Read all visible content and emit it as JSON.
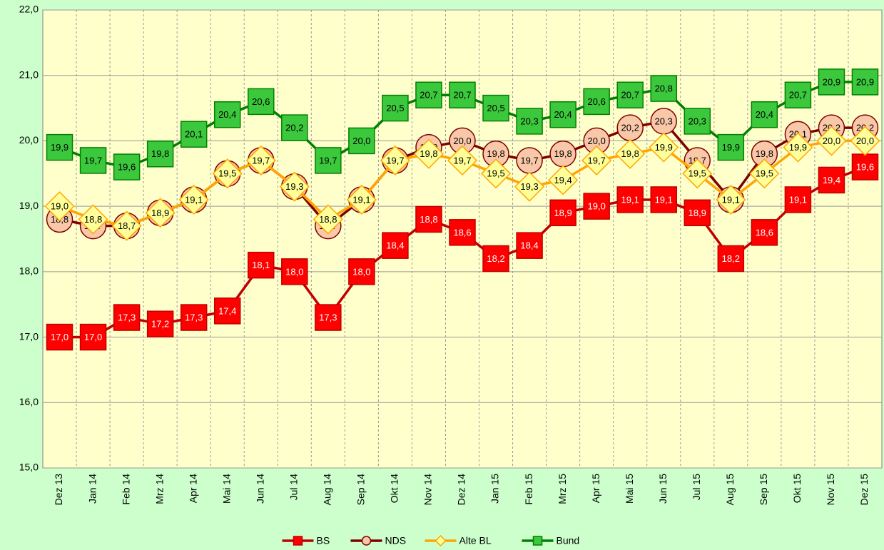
{
  "chart_data": {
    "type": "line",
    "categories": [
      "Dez 13",
      "Jan 14",
      "Feb 14",
      "Mrz 14",
      "Apr 14",
      "Mai 14",
      "Jun 14",
      "Jul 14",
      "Aug 14",
      "Sep 14",
      "Okt 14",
      "Nov 14",
      "Dez 14",
      "Jan 15",
      "Feb 15",
      "Mrz 15",
      "Apr 15",
      "Mai 15",
      "Jun 15",
      "Jul 15",
      "Aug 15",
      "Sep 15",
      "Okt 15",
      "Nov 15",
      "Dez 15"
    ],
    "series": [
      {
        "name": "BS",
        "color": "#c00000",
        "marker": "square",
        "marker_color": "#ff0000",
        "label_color": "#ffffff",
        "values": [
          17.0,
          17.0,
          17.3,
          17.2,
          17.3,
          17.4,
          18.1,
          18.0,
          17.3,
          18.0,
          18.4,
          18.8,
          18.6,
          18.2,
          18.4,
          18.9,
          19.0,
          19.1,
          19.1,
          18.9,
          18.2,
          18.6,
          19.1,
          19.4,
          19.6
        ],
        "value_labels": [
          "17,0",
          "17,0",
          "17,3",
          "17,2",
          "17,3",
          "17,4",
          "18,1",
          "18,0",
          "17,3",
          "18,0",
          "18,4",
          "18,8",
          "18,6",
          "18,2",
          "18,4",
          "18,9",
          "19,0",
          "19,1",
          "19,1",
          "18,9",
          "18,2",
          "18,6",
          "19,1",
          "19,4",
          "19,6"
        ]
      },
      {
        "name": "NDS",
        "color": "#800000",
        "marker": "circle",
        "marker_color": "#f8c8a8",
        "label_color": "#000000",
        "values": [
          18.8,
          18.7,
          18.7,
          18.9,
          19.1,
          19.5,
          19.7,
          19.3,
          18.7,
          19.1,
          19.7,
          19.9,
          20.0,
          19.8,
          19.7,
          19.8,
          20.0,
          20.2,
          20.3,
          19.7,
          19.1,
          19.8,
          20.1,
          20.2,
          20.2
        ],
        "value_labels": [
          "18,8",
          "18,7",
          "18,7",
          "18,9",
          "19,1",
          "19,5",
          "19,7",
          "19,3",
          "18,7",
          "19,1",
          "19,7",
          "19,9",
          "20,0",
          "19,8",
          "19,7",
          "19,8",
          "20,0",
          "20,2",
          "20,3",
          "19,7",
          "19,1",
          "19,8",
          "20,1",
          "20,2",
          "20,2"
        ]
      },
      {
        "name": "Alte BL",
        "color": "#ffa500",
        "marker": "diamond",
        "marker_color": "#ffff99",
        "label_color": "#000000",
        "values": [
          19.0,
          18.8,
          18.7,
          18.9,
          19.1,
          19.5,
          19.7,
          19.3,
          18.8,
          19.1,
          19.7,
          19.8,
          19.7,
          19.5,
          19.3,
          19.4,
          19.7,
          19.8,
          19.9,
          19.5,
          19.1,
          19.5,
          19.9,
          20.0,
          20.0
        ],
        "value_labels": [
          "19,0",
          "18,8",
          "18,7",
          "18,9",
          "19,1",
          "19,5",
          "19,7",
          "19,3",
          "18,8",
          "19,1",
          "19,7",
          "19,8",
          "19,7",
          "19,5",
          "19,3",
          "19,4",
          "19,7",
          "19,8",
          "19,9",
          "19,5",
          "19,1",
          "19,5",
          "19,9",
          "20,0",
          "20,0"
        ]
      },
      {
        "name": "Bund",
        "color": "#008000",
        "marker": "square",
        "marker_color": "#3cc83c",
        "label_color": "#000000",
        "values": [
          19.9,
          19.7,
          19.6,
          19.8,
          20.1,
          20.4,
          20.6,
          20.2,
          19.7,
          20.0,
          20.5,
          20.7,
          20.7,
          20.5,
          20.3,
          20.4,
          20.6,
          20.7,
          20.8,
          20.3,
          19.9,
          20.4,
          20.7,
          20.9,
          20.9
        ],
        "value_labels": [
          "19,9",
          "19,7",
          "19,6",
          "19,8",
          "20,1",
          "20,4",
          "20,6",
          "20,2",
          "19,7",
          "20,0",
          "20,5",
          "20,7",
          "20,7",
          "20,5",
          "20,3",
          "20,4",
          "20,6",
          "20,7",
          "20,8",
          "20,3",
          "19,9",
          "20,4",
          "20,7",
          "20,9",
          "20,9"
        ]
      }
    ],
    "ylim": [
      15,
      22
    ],
    "yticks": [
      {
        "value": 15,
        "label": "15,0"
      },
      {
        "value": 16,
        "label": "16,0"
      },
      {
        "value": 17,
        "label": "17,0"
      },
      {
        "value": 18,
        "label": "18,0"
      },
      {
        "value": 19,
        "label": "19,0"
      },
      {
        "value": 20,
        "label": "20,0"
      },
      {
        "value": 21,
        "label": "21,0"
      },
      {
        "value": 22,
        "label": "22,0"
      }
    ],
    "grid": true,
    "legend": "bottom"
  }
}
